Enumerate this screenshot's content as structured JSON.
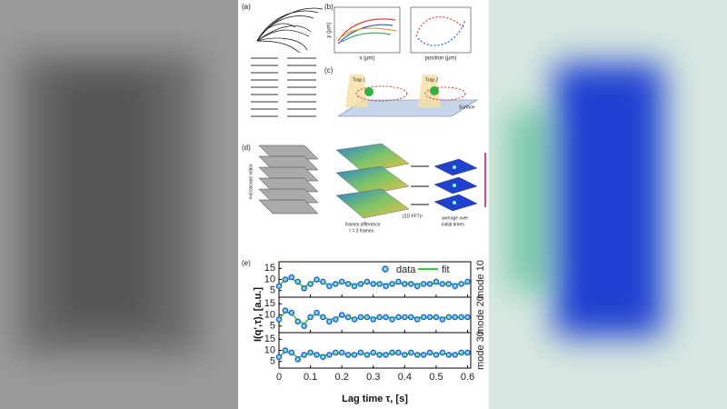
{
  "panels": {
    "a": {
      "label": "(a)"
    },
    "b": {
      "label": "(b)",
      "x_label": "x (μm)",
      "y_label": "y (μm)",
      "x_label_2": "position (μm)"
    },
    "c": {
      "label": "(c)",
      "trap_1": "Trap 1",
      "trap_2": "Trap 2",
      "surface": "Surface"
    },
    "d": {
      "label": "(d)",
      "video": "microscope video",
      "difference": "frames difference",
      "lag": "τ = 3 frames",
      "fft": "(2D FFT)²",
      "average_1": "average over",
      "average_2": "initial times"
    }
  },
  "chart_data": {
    "type": "line",
    "label": "(e)",
    "x_label": "Lag time τ, [s]",
    "y_label": "I(q',τ), [a.u.]",
    "x": [
      0,
      0.02,
      0.04,
      0.06,
      0.08,
      0.1,
      0.12,
      0.14,
      0.16,
      0.18,
      0.2,
      0.22,
      0.24,
      0.26,
      0.28,
      0.3,
      0.32,
      0.34,
      0.36,
      0.38,
      0.4,
      0.42,
      0.44,
      0.46,
      0.48,
      0.5,
      0.52,
      0.54,
      0.56,
      0.58,
      0.6
    ],
    "xlim": [
      0,
      0.61
    ],
    "xticks": [
      0,
      0.1,
      0.2,
      0.3,
      0.4,
      0.5,
      0.6
    ],
    "subplots": [
      {
        "name": "mode 10",
        "ylim": [
          2,
          18
        ],
        "yticks": [
          5,
          10,
          15
        ],
        "series": [
          {
            "name": "data",
            "color": "#1f5fd6",
            "values": [
              7,
              10,
              11,
              9,
              6,
              8,
              10,
              9,
              7,
              8,
              9,
              8,
              7,
              8,
              9,
              8,
              8,
              7,
              8,
              9,
              8,
              8,
              7,
              8,
              8,
              9,
              8,
              8,
              7,
              8,
              9
            ]
          },
          {
            "name": "fit",
            "color": "#33cc33",
            "values": [
              7,
              10,
              10.5,
              8.5,
              6.5,
              8.5,
              9.5,
              8.5,
              7.5,
              8.3,
              8.8,
              8.2,
              7.8,
              8.2,
              8.5,
              8.1,
              8,
              8,
              8.1,
              8.2,
              8,
              8,
              8,
              8.1,
              8.1,
              8,
              8,
              8,
              8,
              8,
              8.1
            ]
          }
        ]
      },
      {
        "name": "mode 20",
        "ylim": [
          2,
          18
        ],
        "yticks": [
          5,
          10,
          15
        ],
        "series": [
          {
            "name": "data",
            "color": "#1f5fd6",
            "values": [
              8,
              12,
              11,
              7,
              5,
              9,
              11,
              9,
              7,
              8,
              10,
              9,
              8,
              9,
              9,
              8,
              9,
              9,
              8,
              9,
              9,
              9,
              8,
              9,
              9,
              9,
              8,
              9,
              9,
              9,
              9
            ]
          },
          {
            "name": "fit",
            "color": "#33cc33",
            "values": [
              8,
              11.5,
              10.5,
              7.5,
              6,
              9,
              10.5,
              9,
              7.8,
              8.6,
              9.6,
              8.9,
              8.3,
              8.8,
              9.1,
              8.7,
              8.8,
              8.9,
              8.7,
              8.9,
              8.9,
              8.8,
              8.8,
              8.9,
              8.9,
              8.8,
              8.8,
              8.9,
              8.9,
              8.9,
              8.9
            ]
          }
        ]
      },
      {
        "name": "mode 30",
        "ylim": [
          2,
          18
        ],
        "yticks": [
          5,
          10,
          15
        ],
        "series": [
          {
            "name": "data",
            "color": "#1f5fd6",
            "values": [
              7,
              10,
              9,
              6,
              8,
              9,
              8,
              7,
              8,
              9,
              9,
              8,
              8,
              9,
              8,
              9,
              8,
              8,
              9,
              9,
              8,
              9,
              8,
              8,
              9,
              8,
              9,
              8,
              8,
              9,
              9
            ]
          },
          {
            "name": "fit",
            "color": "#33cc33",
            "values": [
              7,
              9.5,
              8.8,
              6.8,
              7.8,
              8.8,
              8.2,
              7.6,
              8.2,
              8.7,
              8.5,
              8.2,
              8.3,
              8.6,
              8.4,
              8.5,
              8.4,
              8.4,
              8.5,
              8.5,
              8.4,
              8.5,
              8.4,
              8.4,
              8.5,
              8.4,
              8.5,
              8.4,
              8.4,
              8.5,
              8.5
            ]
          }
        ]
      }
    ]
  }
}
